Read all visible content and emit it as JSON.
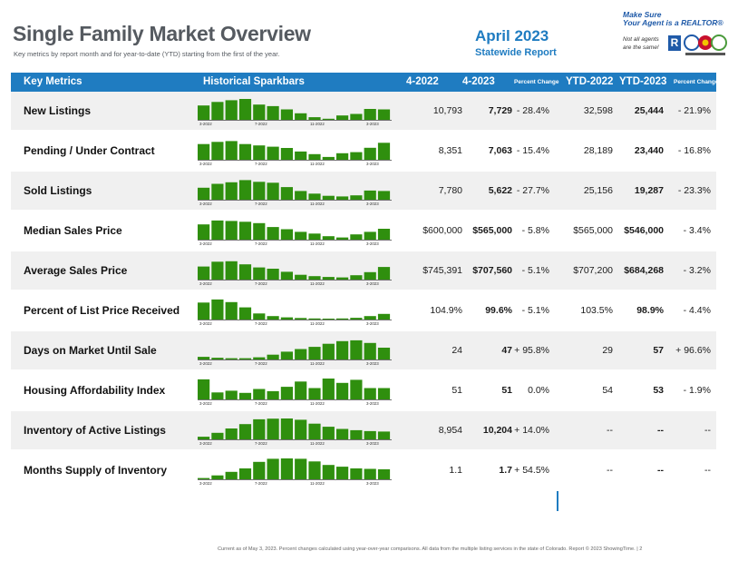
{
  "header": {
    "title": "Single Family Market Overview",
    "subtitle": "Key metrics by report month and for year-to-date (YTD) starting from the first of the year.",
    "report_month": "April 2023",
    "report_type": "Statewide Report"
  },
  "realtor": {
    "line1": "Make Sure",
    "line2": "Your Agent is a REALTOR®",
    "line3": "Not all agents",
    "line4": "are the same!",
    "r_mark": "R"
  },
  "columns": {
    "metric": "Key Metrics",
    "spark": "Historical Sparkbars",
    "prev": "4-2022",
    "curr": "4-2023",
    "pct": "Percent Change",
    "ytd_prev": "YTD-2022",
    "ytd_curr": "YTD-2023",
    "ytd_pct": "Percent Change"
  },
  "spark_labels": [
    "3-2022",
    "7-2022",
    "11-2022",
    "3-2023"
  ],
  "colors": {
    "accent": "#1f7cc1",
    "bar": "#2f8f0e"
  },
  "rows": [
    {
      "name": "New Listings",
      "prev": "10,793",
      "curr": "7,729",
      "pct": "- 28.4%",
      "ytd_prev": "32,598",
      "ytd_curr": "25,444",
      "ytd_pct": "- 21.9%",
      "bars": [
        0.66,
        0.82,
        0.9,
        0.96,
        0.7,
        0.63,
        0.48,
        0.3,
        0.12,
        0.05,
        0.2,
        0.27,
        0.5,
        0.48
      ]
    },
    {
      "name": "Pending / Under Contract",
      "prev": "8,351",
      "curr": "7,063",
      "pct": "- 15.4%",
      "ytd_prev": "28,189",
      "ytd_curr": "23,440",
      "ytd_pct": "- 16.8%",
      "bars": [
        0.72,
        0.82,
        0.86,
        0.72,
        0.66,
        0.6,
        0.54,
        0.38,
        0.26,
        0.13,
        0.3,
        0.35,
        0.55,
        0.78
      ]
    },
    {
      "name": "Sold Listings",
      "prev": "7,780",
      "curr": "5,622",
      "pct": "- 27.7%",
      "ytd_prev": "25,156",
      "ytd_curr": "19,287",
      "ytd_pct": "- 23.3%",
      "bars": [
        0.55,
        0.73,
        0.8,
        0.9,
        0.82,
        0.78,
        0.58,
        0.4,
        0.28,
        0.18,
        0.15,
        0.2,
        0.42,
        0.4
      ]
    },
    {
      "name": "Median Sales Price",
      "prev": "$600,000",
      "curr": "$565,000",
      "pct": "- 5.8%",
      "ytd_prev": "$565,000",
      "ytd_curr": "$546,000",
      "ytd_pct": "- 3.4%",
      "bars": [
        0.7,
        0.88,
        0.86,
        0.82,
        0.76,
        0.58,
        0.48,
        0.36,
        0.28,
        0.16,
        0.1,
        0.24,
        0.36,
        0.5
      ]
    },
    {
      "name": "Average Sales Price",
      "prev": "$745,391",
      "curr": "$707,560",
      "pct": "- 5.1%",
      "ytd_prev": "$707,200",
      "ytd_curr": "$684,268",
      "ytd_pct": "- 3.2%",
      "bars": [
        0.6,
        0.82,
        0.84,
        0.7,
        0.56,
        0.5,
        0.36,
        0.22,
        0.16,
        0.12,
        0.1,
        0.2,
        0.34,
        0.58
      ]
    },
    {
      "name": "Percent of List Price Received",
      "prev": "104.9%",
      "curr": "99.6%",
      "pct": "- 5.1%",
      "ytd_prev": "103.5%",
      "ytd_curr": "98.9%",
      "ytd_pct": "- 4.4%",
      "bars": [
        0.78,
        0.92,
        0.8,
        0.56,
        0.28,
        0.16,
        0.1,
        0.07,
        0.05,
        0.04,
        0.05,
        0.08,
        0.16,
        0.26
      ]
    },
    {
      "name": "Days on Market Until Sale",
      "prev": "24",
      "curr": "47",
      "pct": "+ 95.8%",
      "ytd_prev": "29",
      "ytd_curr": "57",
      "ytd_pct": "+ 96.6%",
      "bars": [
        0.12,
        0.08,
        0.06,
        0.06,
        0.1,
        0.22,
        0.36,
        0.48,
        0.58,
        0.72,
        0.84,
        0.88,
        0.76,
        0.54
      ]
    },
    {
      "name": "Housing Affordability Index",
      "prev": "51",
      "curr": "51",
      "pct": "0.0%",
      "ytd_prev": "54",
      "ytd_curr": "53",
      "ytd_pct": "- 1.9%",
      "bars": [
        0.92,
        0.32,
        0.4,
        0.3,
        0.48,
        0.38,
        0.58,
        0.82,
        0.52,
        0.96,
        0.76,
        0.9,
        0.52,
        0.52
      ]
    },
    {
      "name": "Inventory of Active Listings",
      "prev": "8,954",
      "curr": "10,204",
      "pct": "+ 14.0%",
      "ytd_prev": "--",
      "ytd_curr": "--",
      "ytd_pct": "--",
      "bars": [
        0.12,
        0.3,
        0.5,
        0.7,
        0.92,
        0.95,
        0.96,
        0.9,
        0.72,
        0.58,
        0.48,
        0.42,
        0.38,
        0.36
      ]
    },
    {
      "name": "Months Supply of Inventory",
      "prev": "1.1",
      "curr": "1.7",
      "pct": "+ 54.5%",
      "ytd_prev": "--",
      "ytd_curr": "--",
      "ytd_pct": "--",
      "bars": [
        0.06,
        0.18,
        0.34,
        0.5,
        0.8,
        0.94,
        0.96,
        0.94,
        0.82,
        0.66,
        0.58,
        0.5,
        0.48,
        0.46
      ]
    }
  ],
  "footer": "Current as of May 3, 2023. Percent changes calculated using year-over-year comparisons. All data from the multiple listing services in the state of Colorado. Report © 2023 ShowingTime.  |  2"
}
